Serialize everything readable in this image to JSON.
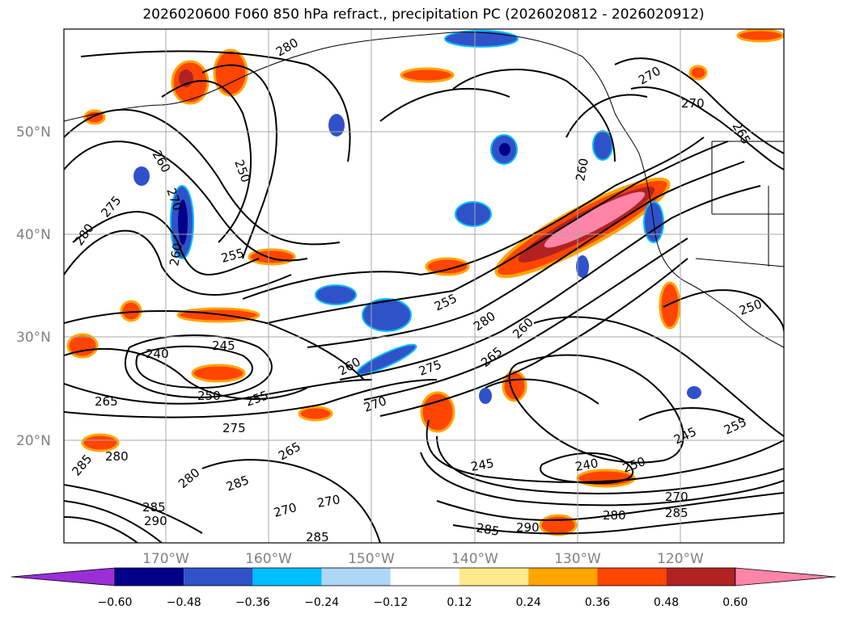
{
  "title": "2026020600 F060 850 hPa refract., precipitation PC (2026020812 - 2026020912)",
  "lat_labels": [
    "50°N",
    "40°N",
    "30°N",
    "20°N"
  ],
  "lon_labels": [
    "170°W",
    "160°W",
    "150°W",
    "140°W",
    "130°W",
    "120°W"
  ],
  "colorbar": {
    "ticks": [
      "−0.60",
      "−0.48",
      "−0.36",
      "−0.24",
      "−0.12",
      "0.12",
      "0.24",
      "0.36",
      "0.48",
      "0.60"
    ],
    "colors": [
      "#9a2fd8",
      "#00008b",
      "#3052c8",
      "#00bfff",
      "#add8f5",
      "#ffffff",
      "#ffe98a",
      "#ffa500",
      "#ff4500",
      "#b22222",
      "#ff85a8"
    ]
  },
  "contour_labels": [
    "280",
    "260",
    "270",
    "260",
    "250",
    "280",
    "275",
    "270",
    "265",
    "255",
    "255",
    "260",
    "280",
    "265",
    "260",
    "275",
    "270",
    "245",
    "240",
    "240",
    "250",
    "255",
    "265",
    "275",
    "285",
    "280",
    "280",
    "285",
    "285",
    "290",
    "270",
    "285",
    "285",
    "290",
    "280",
    "270",
    "285",
    "245",
    "250",
    "245",
    "255",
    "250",
    "270",
    "260",
    "270",
    "265"
  ]
}
